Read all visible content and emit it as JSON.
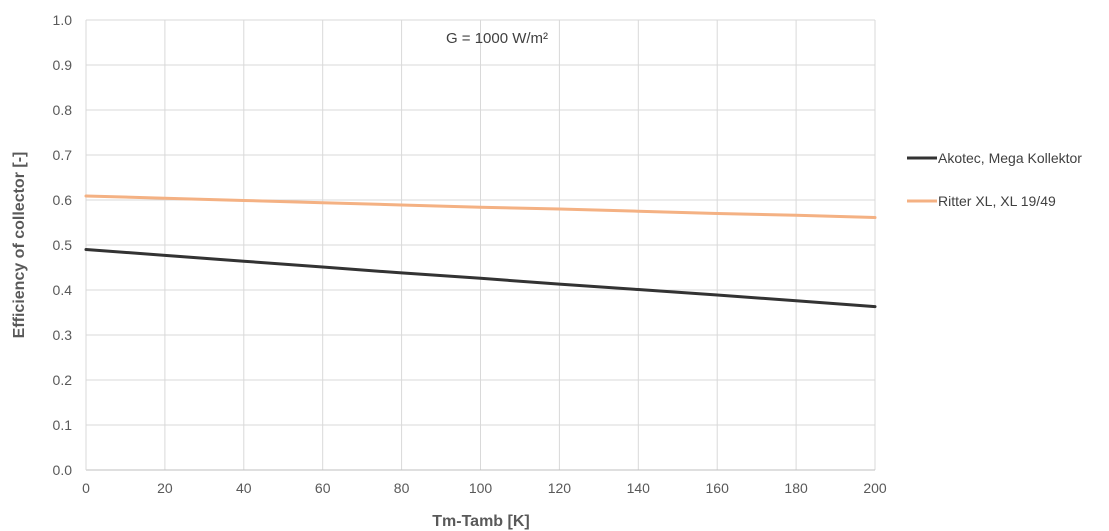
{
  "chart_data": {
    "type": "line",
    "title": "",
    "annotation": "G = 1000 W/m²",
    "xlabel": "Tm-Tamb [K]",
    "ylabel": "Efficiency of collector [-]",
    "xlim": [
      0,
      200
    ],
    "ylim": [
      0.0,
      1.0
    ],
    "x_ticks": [
      "0",
      "20",
      "40",
      "60",
      "80",
      "100",
      "120",
      "140",
      "160",
      "180",
      "200"
    ],
    "y_ticks": [
      "0.0",
      "0.1",
      "0.2",
      "0.3",
      "0.4",
      "0.5",
      "0.6",
      "0.7",
      "0.8",
      "0.9",
      "1.0"
    ],
    "grid": true,
    "legend_position": "right",
    "x": [
      0,
      20,
      40,
      60,
      80,
      100,
      120,
      140,
      160,
      180,
      200
    ],
    "series": [
      {
        "name": "Akotec, Mega Kollektor",
        "color": "#333333",
        "values": [
          0.49,
          0.477,
          0.464,
          0.451,
          0.438,
          0.426,
          0.413,
          0.401,
          0.389,
          0.376,
          0.363
        ]
      },
      {
        "name": "Ritter XL, XL 19/49",
        "color": "#f4b183",
        "values": [
          0.609,
          0.604,
          0.599,
          0.594,
          0.589,
          0.584,
          0.58,
          0.575,
          0.57,
          0.566,
          0.561
        ]
      }
    ]
  }
}
